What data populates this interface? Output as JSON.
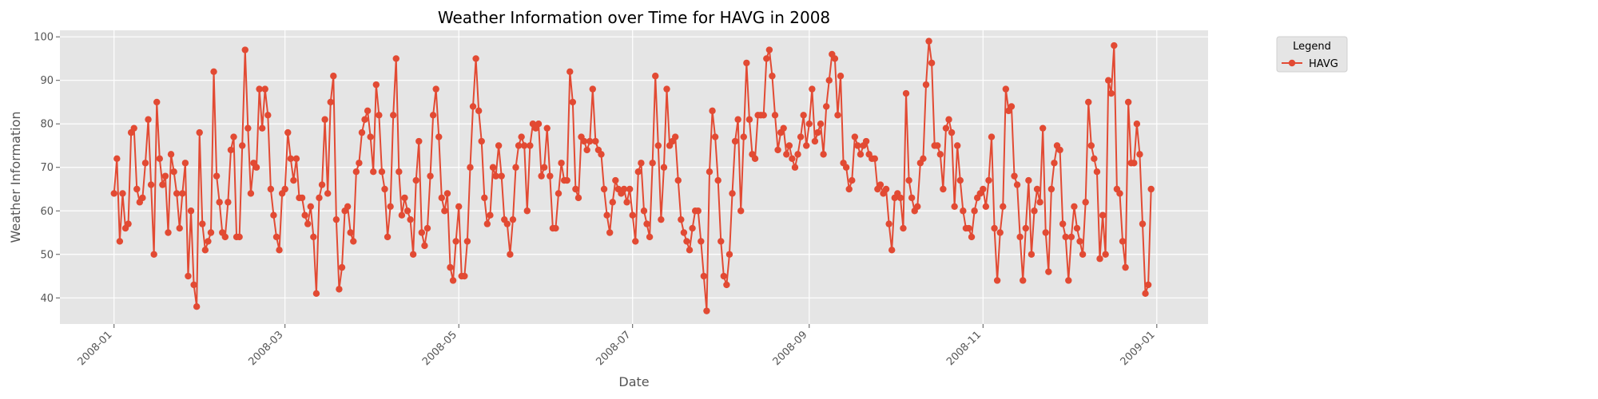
{
  "chart_data": {
    "type": "line",
    "title": "Weather Information over Time for HAVG in 2008",
    "xlabel": "Date",
    "ylabel": "Weather Information",
    "xlim": [
      "2007-12-13",
      "2009-01-19"
    ],
    "ylim": [
      34,
      101.5
    ],
    "x_ticks": [
      "2008-01",
      "2008-03",
      "2008-05",
      "2008-07",
      "2008-09",
      "2008-11",
      "2009-01"
    ],
    "y_ticks": [
      40,
      50,
      60,
      70,
      80,
      90,
      100
    ],
    "grid": true,
    "legend": {
      "title": "Legend",
      "placement": "outside-top-right",
      "entries": [
        "HAVG"
      ]
    },
    "colors": {
      "series": "#E24A33",
      "plot_background": "#E5E5E5",
      "grid": "#FFFFFF",
      "text": "#555555"
    },
    "series": [
      {
        "name": "HAVG",
        "x_start": "2008-01-01",
        "x_end": "2008-12-31",
        "values": [
          64,
          72,
          53,
          64,
          56,
          57,
          78,
          79,
          65,
          62,
          63,
          71,
          81,
          66,
          50,
          85,
          72,
          66,
          68,
          55,
          73,
          69,
          64,
          56,
          64,
          71,
          45,
          60,
          43,
          38,
          78,
          57,
          51,
          53,
          55,
          92,
          68,
          62,
          55,
          54,
          62,
          74,
          77,
          54,
          54,
          75,
          97,
          79,
          64,
          71,
          70,
          88,
          79,
          88,
          82,
          65,
          59,
          54,
          51,
          64,
          65,
          78,
          72,
          67,
          72,
          63,
          63,
          59,
          57,
          61,
          54,
          41,
          63,
          66,
          81,
          64,
          85,
          91,
          58,
          42,
          47,
          60,
          61,
          55,
          53,
          69,
          71,
          78,
          81,
          83,
          77,
          69,
          89,
          82,
          69,
          65,
          54,
          61,
          82,
          95,
          69,
          59,
          63,
          60,
          58,
          50,
          67,
          76,
          55,
          52,
          56,
          68,
          82,
          88,
          77,
          63,
          60,
          64,
          47,
          44,
          53,
          61,
          45,
          45,
          53,
          70,
          84,
          95,
          83,
          76,
          63,
          57,
          59,
          70,
          68,
          75,
          68,
          58,
          57,
          50,
          58,
          70,
          75,
          77,
          75,
          60,
          75,
          80,
          79,
          80,
          68,
          70,
          79,
          68,
          56,
          56,
          64,
          71,
          67,
          67,
          92,
          85,
          65,
          63,
          77,
          76,
          74,
          76,
          88,
          76,
          74,
          73,
          65,
          59,
          55,
          62,
          67,
          65,
          64,
          65,
          62,
          65,
          59,
          53,
          69,
          71,
          60,
          57,
          54,
          71,
          91,
          75,
          58,
          70,
          88,
          75,
          76,
          77,
          67,
          58,
          55,
          53,
          51,
          56,
          60,
          60,
          53,
          45,
          37,
          69,
          83,
          77,
          67,
          53,
          45,
          43,
          50,
          64,
          76,
          81,
          60,
          77,
          94,
          81,
          73,
          72,
          82,
          82,
          82,
          95,
          97,
          91,
          82,
          74,
          78,
          79,
          73,
          75,
          72,
          70,
          73,
          77,
          82,
          75,
          80,
          88,
          76,
          78,
          80,
          73,
          84,
          90,
          96,
          95,
          82,
          91,
          71,
          70,
          65,
          67,
          77,
          75,
          73,
          75,
          76,
          73,
          72,
          72,
          65,
          66,
          64,
          65,
          57,
          51,
          63,
          64,
          63,
          56,
          87,
          67,
          63,
          60,
          61,
          71,
          72,
          89,
          99,
          94,
          75,
          75,
          73,
          65,
          79,
          81,
          78,
          61,
          75,
          67,
          60,
          56,
          56,
          54,
          60,
          63,
          64,
          65,
          61,
          67,
          77,
          56,
          44,
          55,
          61,
          88,
          83,
          84,
          68,
          66,
          54,
          44,
          56,
          67,
          50,
          60,
          65,
          62,
          79,
          55,
          46,
          65,
          71,
          75,
          74,
          57,
          54,
          44,
          54,
          61,
          56,
          53,
          50,
          62,
          85,
          75,
          72,
          69,
          49,
          59,
          50,
          90,
          87,
          98,
          65,
          64,
          53,
          47,
          85,
          71,
          71,
          80,
          73,
          57,
          41,
          43,
          65
        ]
      }
    ]
  }
}
